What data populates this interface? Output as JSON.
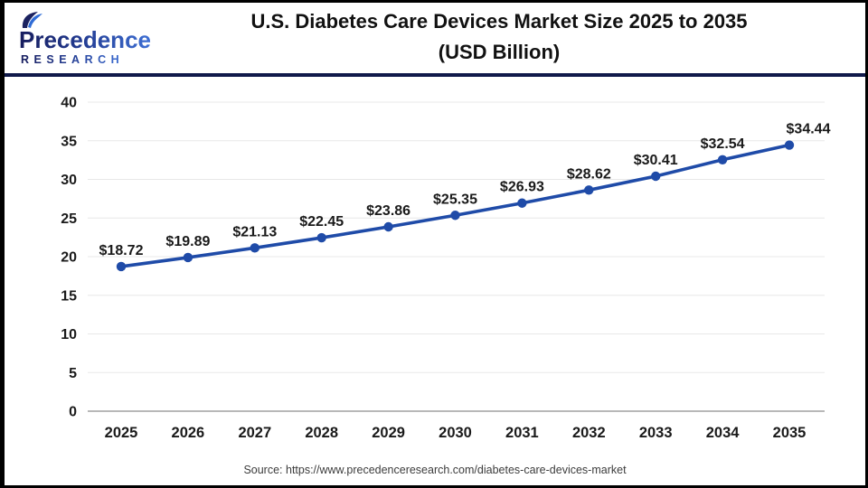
{
  "header": {
    "logo_name": "Precedence",
    "logo_sub": "RESEARCH",
    "title_line1": "U.S. Diabetes Care Devices Market Size 2025 to 2035",
    "title_line2": "(USD Billion)"
  },
  "chart_data": {
    "type": "line",
    "title": "U.S. Diabetes Care Devices Market Size 2025 to 2035 (USD Billion)",
    "categories": [
      "2025",
      "2026",
      "2027",
      "2028",
      "2029",
      "2030",
      "2031",
      "2032",
      "2033",
      "2034",
      "2035"
    ],
    "series": [
      {
        "name": "U.S. Diabetes Care Devices Market Size (USD Billion)",
        "values": [
          18.72,
          19.89,
          21.13,
          22.45,
          23.86,
          25.35,
          26.93,
          28.62,
          30.41,
          32.54,
          34.44
        ],
        "labels": [
          "$18.72",
          "$19.89",
          "$21.13",
          "$22.45",
          "$23.86",
          "$25.35",
          "$26.93",
          "$28.62",
          "$30.41",
          "$32.54",
          "$34.44"
        ]
      }
    ],
    "xlabel": "",
    "ylabel": "",
    "ylim": [
      0,
      40
    ],
    "yticks": [
      0,
      5,
      10,
      15,
      20,
      25,
      30,
      35,
      40
    ],
    "grid": "horizontal",
    "legend": "none",
    "colors": {
      "line": "#1f4ba8",
      "marker": "#1f4ba8",
      "grid": "#e8e8e8",
      "axis": "#b8b8b8",
      "label": "#1a1a1a",
      "header_divider": "#10194a",
      "logo_dark": "#171d5e",
      "logo_light": "#3e6fd4"
    }
  },
  "footer": {
    "source": "Source: https://www.precedenceresearch.com/diabetes-care-devices-market"
  }
}
